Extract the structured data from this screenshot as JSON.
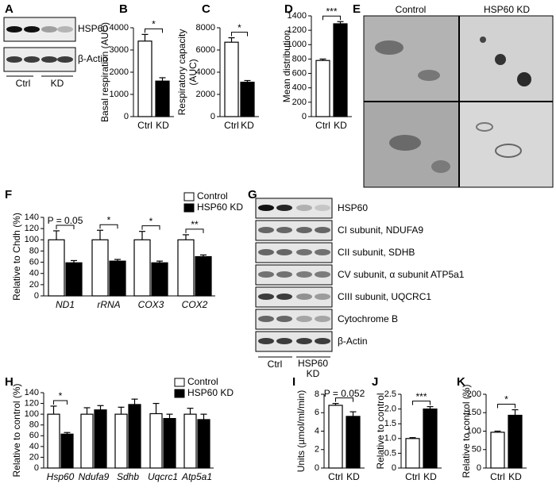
{
  "panel_letters": [
    "A",
    "B",
    "C",
    "D",
    "E",
    "F",
    "G",
    "H",
    "I",
    "J",
    "K"
  ],
  "blot_a": {
    "labels": [
      "HSP60",
      "β-Actin"
    ],
    "lanes": [
      "Ctrl",
      "KD"
    ]
  },
  "micrograph": {
    "columns": [
      "Control",
      "HSP60 KD"
    ]
  },
  "blot_g": {
    "labels": [
      "HSP60",
      "CI subunit, NDUFA9",
      "CII subunit, SDHB",
      "CV subunit, α subunit ATP5a1",
      "CIII subunit, UQCRC1",
      "Cytochrome B",
      "β-Actin"
    ],
    "lanes": [
      "Ctrl",
      "HSP60 KD"
    ]
  },
  "chart_data": [
    {
      "type": "bar",
      "ylabel": "Basal respiration (AUC)",
      "categories": [
        "Ctrl",
        "KD"
      ],
      "values": [
        3400,
        1600
      ],
      "errors": [
        300,
        150
      ],
      "colors": [
        "#ffffff",
        "#000000"
      ],
      "ylim": [
        0,
        4000
      ],
      "yticks": [
        0,
        1000,
        2000,
        3000,
        4000
      ],
      "annotations": [
        "*"
      ]
    },
    {
      "type": "bar",
      "ylabel": [
        "Respiratory capacity",
        "(AUC)"
      ],
      "categories": [
        "Ctrl",
        "KD"
      ],
      "values": [
        6700,
        3100
      ],
      "errors": [
        400,
        150
      ],
      "colors": [
        "#ffffff",
        "#000000"
      ],
      "ylim": [
        0,
        8000
      ],
      "yticks": [
        0,
        2000,
        4000,
        6000,
        8000
      ],
      "annotations": [
        "*"
      ]
    },
    {
      "type": "bar",
      "ylabel": "Mean distribution",
      "categories": [
        "Ctrl",
        "KD"
      ],
      "values": [
        780,
        1290
      ],
      "errors": [
        20,
        30
      ],
      "colors": [
        "#ffffff",
        "#000000"
      ],
      "ylim": [
        0,
        1400
      ],
      "yticks": [
        0,
        200,
        400,
        600,
        800,
        1000,
        1200,
        1400
      ],
      "annotations": [
        "***"
      ]
    },
    {
      "type": "bar",
      "ylabel": "Relative to Chdh (%)",
      "categories": [
        "ND1",
        "rRNA",
        "COX3",
        "COX2"
      ],
      "series": [
        {
          "name": "Control",
          "color": "#ffffff",
          "values": [
            100,
            100,
            100,
            100
          ],
          "errors": [
            16,
            17,
            15,
            9
          ]
        },
        {
          "name": "HSP60 KD",
          "color": "#000000",
          "values": [
            59,
            62,
            59,
            70
          ],
          "errors": [
            4,
            3,
            3,
            3
          ]
        }
      ],
      "ylim": [
        0,
        140
      ],
      "yticks": [
        0,
        20,
        40,
        60,
        80,
        100,
        120,
        140
      ],
      "annotations": [
        "P = 0.05",
        "*",
        "*",
        "**"
      ],
      "legend": "top-right"
    },
    {
      "type": "bar",
      "ylabel": "Relative to control (%)",
      "categories": [
        "Hsp60",
        "Ndufa9",
        "Sdhb",
        "Uqcrc1",
        "Atp5a1"
      ],
      "series": [
        {
          "name": "Control",
          "color": "#ffffff",
          "values": [
            100,
            100,
            100,
            101,
            100
          ],
          "errors": [
            15,
            12,
            13,
            19,
            11
          ]
        },
        {
          "name": "HSP60 KD",
          "color": "#000000",
          "values": [
            63,
            108,
            118,
            92,
            90
          ],
          "errors": [
            3,
            8,
            10,
            8,
            10
          ]
        }
      ],
      "ylim": [
        0,
        140
      ],
      "yticks": [
        0,
        20,
        40,
        60,
        80,
        100,
        120,
        140
      ],
      "annotations": [
        "*"
      ],
      "legend": "top-right"
    },
    {
      "type": "bar",
      "ylabel": "Units (µmol/ml/min)",
      "categories": [
        "Ctrl",
        "KD"
      ],
      "values": [
        6.8,
        5.6
      ],
      "errors": [
        0.2,
        0.5
      ],
      "colors": [
        "#ffffff",
        "#000000"
      ],
      "ylim": [
        0,
        8
      ],
      "yticks": [
        0,
        2,
        4,
        6,
        8
      ],
      "annotations": [
        "P = 0.052"
      ]
    },
    {
      "type": "bar",
      "ylabel": "Relative to control",
      "categories": [
        "Ctrl",
        "KD"
      ],
      "values": [
        1.0,
        2.0
      ],
      "errors": [
        0.03,
        0.08
      ],
      "colors": [
        "#ffffff",
        "#000000"
      ],
      "ylim": [
        0,
        2.5
      ],
      "yticks": [
        0,
        0.5,
        {
          "value": 1,
          "label": "1.0"
        },
        1.5,
        {
          "value": 2,
          "label": "2.0"
        },
        2.5
      ],
      "annotations": [
        "***"
      ]
    },
    {
      "type": "bar",
      "ylabel": "Relative to control (%)",
      "categories": [
        "Ctrl",
        "KD"
      ],
      "values": [
        97,
        143
      ],
      "errors": [
        3,
        15
      ],
      "colors": [
        "#ffffff",
        "#000000"
      ],
      "ylim": [
        0,
        200
      ],
      "yticks": [
        0,
        50,
        100,
        150,
        200
      ],
      "annotations": [
        "*"
      ]
    }
  ]
}
